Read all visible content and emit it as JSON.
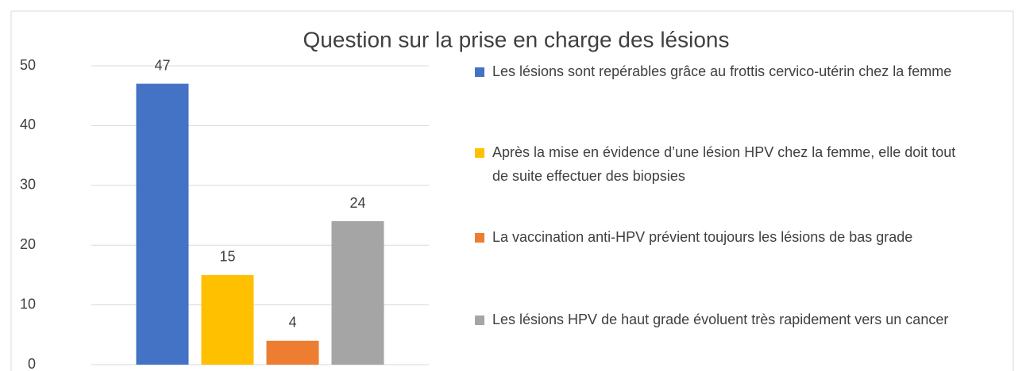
{
  "chart_data": {
    "type": "bar",
    "title": "Question sur la prise en charge des lésions",
    "categories": [
      null
    ],
    "series": [
      {
        "name": "Les lésions sont repérables grâce au frottis cervico-utérin chez la femme",
        "color": "#4472c4",
        "values": [
          47
        ]
      },
      {
        "name": "Après la mise en évidence d’une lésion HPV chez la femme, elle doit tout de suite effectuer des biopsies",
        "color": "#ffc000",
        "values": [
          15
        ]
      },
      {
        "name": "La vaccination anti-HPV prévient toujours les lésions de bas grade",
        "color": "#ed7d31",
        "values": [
          4
        ]
      },
      {
        "name": "Les lésions HPV de haut grade évoluent très rapidement vers un cancer",
        "color": "#a5a5a5",
        "values": [
          24
        ]
      }
    ],
    "ylim": [
      0,
      50
    ],
    "yticks": [
      0,
      10,
      20,
      30,
      40,
      50
    ],
    "grid": true,
    "legend": "right"
  }
}
